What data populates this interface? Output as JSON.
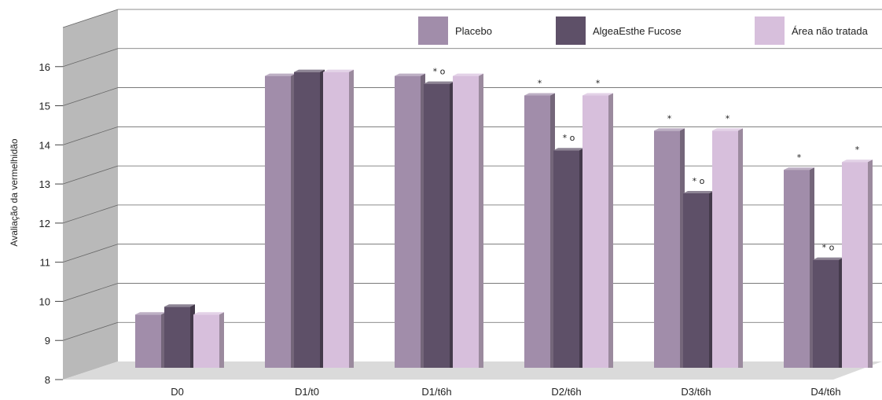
{
  "chart_data": {
    "type": "bar",
    "title": "",
    "xlabel": "",
    "ylabel": "Avaliação da vermelhidão",
    "ylim": [
      8,
      17
    ],
    "yticks": [
      8,
      9,
      10,
      11,
      12,
      13,
      14,
      15,
      16
    ],
    "grid": true,
    "legend_position": "top-right",
    "categories": [
      "D0",
      "D1/t0",
      "D1/t6h",
      "D2/t6h",
      "D3/t6h",
      "D4/t6h"
    ],
    "series": [
      {
        "name": "Placebo",
        "color": "#a18daa",
        "values": [
          9.2,
          15.3,
          15.3,
          14.8,
          13.9,
          12.9
        ]
      },
      {
        "name": "AlgeaEsthe Fucose",
        "color": "#5e5068",
        "values": [
          9.4,
          15.4,
          15.1,
          13.4,
          12.3,
          10.6
        ]
      },
      {
        "name": "Área não tratada",
        "color": "#d7bfdc",
        "values": [
          9.2,
          15.4,
          15.3,
          14.8,
          13.9,
          13.1
        ]
      }
    ],
    "annotations": [
      [
        "",
        "",
        ""
      ],
      [
        "",
        "",
        ""
      ],
      [
        "",
        "* o",
        ""
      ],
      [
        "*",
        "* o",
        "*"
      ],
      [
        "*",
        "* o",
        "*"
      ],
      [
        "*",
        "* o",
        "*"
      ]
    ]
  }
}
